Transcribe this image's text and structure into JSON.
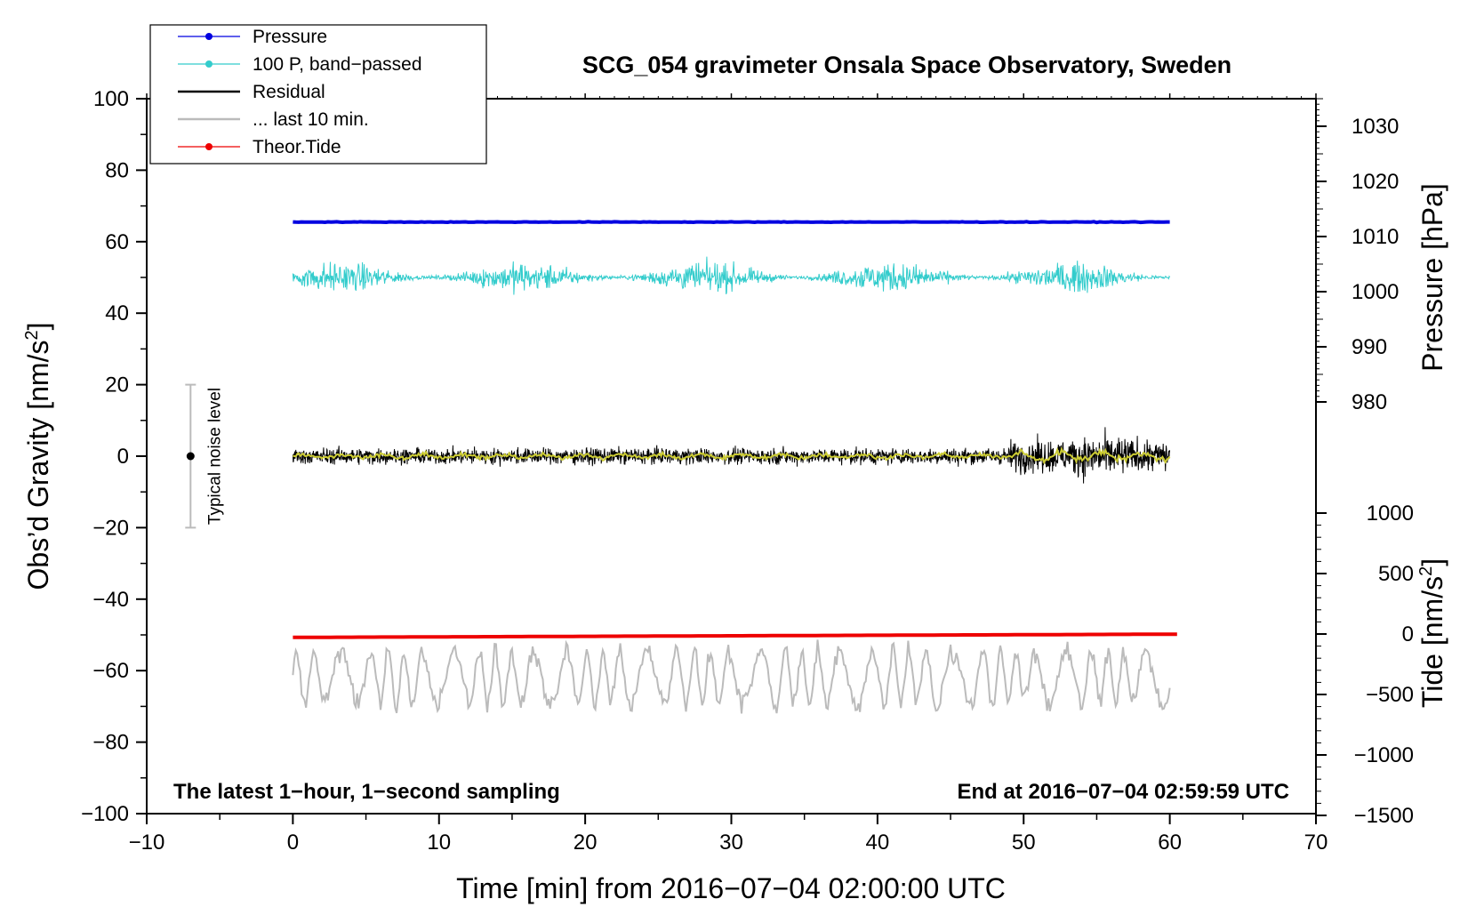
{
  "chart_data": {
    "type": "line",
    "title": "SCG_054 gravimeter Onsala Space Observatory, Sweden",
    "xlabel": "Time [min] from 2016−07−04 02:00:00 UTC",
    "ylabel_left": "Obs’d Gravity [nm/s",
    "ylabel_left_sup": "2",
    "ylabel_left_close": "]",
    "ylabel_right_pressure": "Pressure [hPa]",
    "ylabel_right_tide": "Tide [nm/s",
    "ylabel_right_tide_sup": "2",
    "ylabel_right_tide_close": "]",
    "xlim": [
      -10,
      70
    ],
    "ylim_left": [
      -100,
      100
    ],
    "ylim_pressure_ticks": [
      980,
      990,
      1000,
      1010,
      1020,
      1030
    ],
    "ylim_tide": [
      -1500,
      1000
    ],
    "x_ticks": [
      -10,
      0,
      10,
      20,
      30,
      40,
      50,
      60,
      70
    ],
    "x_tick_labels": [
      "−10",
      "0",
      "10",
      "20",
      "30",
      "40",
      "50",
      "60",
      "70"
    ],
    "y_left_ticks": [
      -100,
      -80,
      -60,
      -40,
      -20,
      0,
      20,
      40,
      60,
      80,
      100
    ],
    "y_left_tick_labels": [
      "−100",
      "−80",
      "−60",
      "−40",
      "−20",
      "0",
      "20",
      "40",
      "60",
      "80",
      "100"
    ],
    "y_pressure_tick_labels": [
      "980",
      "990",
      "1000",
      "1010",
      "1020",
      "1030"
    ],
    "y_tide_ticks": [
      -1500,
      -1000,
      -500,
      0,
      500,
      1000
    ],
    "y_tide_tick_labels": [
      "−1500",
      "−1000",
      "−500",
      "0",
      "500",
      "1000"
    ],
    "annotations": {
      "bottom_left": "The latest 1−hour, 1−second sampling",
      "bottom_right": "End at 2016−07−04 02:59:59 UTC",
      "noise_label": "Typical noise level"
    },
    "noise_bar": {
      "x": -7,
      "center": 0,
      "low": -20,
      "high": 20
    },
    "legend_position": "top-left",
    "grid": false,
    "series": [
      {
        "name": "Pressure",
        "color": "#0000e0",
        "kind": "line-dot",
        "x_range": [
          0,
          60
        ],
        "approx_level": 65.5,
        "axis": "left-equivalent"
      },
      {
        "name": "100 P, band−passed",
        "color": "#33cccc",
        "kind": "line-dot",
        "x_range": [
          0,
          60
        ],
        "approx_level": 50,
        "amplitude": 6
      },
      {
        "name": "Residual",
        "color": "#000000",
        "kind": "line",
        "x_range": [
          0,
          60
        ],
        "approx_level": 0,
        "amplitude": 5
      },
      {
        "name": "... last 10 min.",
        "color": "#bbbbbb",
        "kind": "line",
        "x_range": [
          0,
          60
        ],
        "approx_level": -62,
        "amplitude": 8
      },
      {
        "name": "Theor.Tide",
        "color": "#ee0000",
        "kind": "line-dot",
        "x_range": [
          0,
          60.5
        ],
        "approx_level": -50
      },
      {
        "name": "",
        "color": "#cccc33",
        "kind": "line",
        "x_range": [
          0,
          60
        ],
        "approx_level": 0,
        "amplitude": 1.5
      }
    ]
  }
}
